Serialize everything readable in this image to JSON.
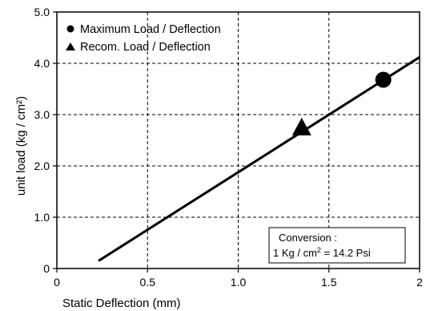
{
  "chart_data": {
    "type": "line",
    "xlabel": "Static Deflection (mm)",
    "ylabel": "unit load (kg / cm²)",
    "xlim": [
      0,
      2
    ],
    "ylim": [
      0,
      5
    ],
    "x_ticks": [
      {
        "value": 0,
        "label": "0"
      },
      {
        "value": 0.5,
        "label": "0.5"
      },
      {
        "value": 1.0,
        "label": "1.0"
      },
      {
        "value": 1.5,
        "label": "1.5"
      },
      {
        "value": 2.0,
        "label": "2"
      }
    ],
    "y_ticks": [
      {
        "value": 0,
        "label": "0"
      },
      {
        "value": 1.0,
        "label": "1.0"
      },
      {
        "value": 2.0,
        "label": "2.0"
      },
      {
        "value": 3.0,
        "label": "3.0"
      },
      {
        "value": 4.0,
        "label": "4.0"
      },
      {
        "value": 5.0,
        "label": "5.0"
      }
    ],
    "grid": true,
    "grid_style": "dashed",
    "series": [
      {
        "kind": "line",
        "color": "#000000",
        "points": [
          {
            "x": 0.23,
            "y": 0.15
          },
          {
            "x": 2.0,
            "y": 4.12
          }
        ]
      }
    ],
    "markers": [
      {
        "name": "Maximum Load / Deflection",
        "shape": "circle",
        "x": 1.8,
        "y": 3.68
      },
      {
        "name": "Recom. Load / Deflection",
        "shape": "triangle",
        "x": 1.35,
        "y": 2.72
      }
    ],
    "legend": {
      "position": "top-left",
      "items": [
        {
          "shape": "circle",
          "label": "Maximum Load / Deflection"
        },
        {
          "shape": "triangle",
          "label": "Recom. Load / Deflection"
        }
      ]
    },
    "annotation": {
      "position": "bottom-right",
      "line1": "Conversion :",
      "line2_prefix": "1 Kg / cm",
      "line2_sup": "2",
      "line2_suffix": " = 14.2 Psi"
    }
  }
}
